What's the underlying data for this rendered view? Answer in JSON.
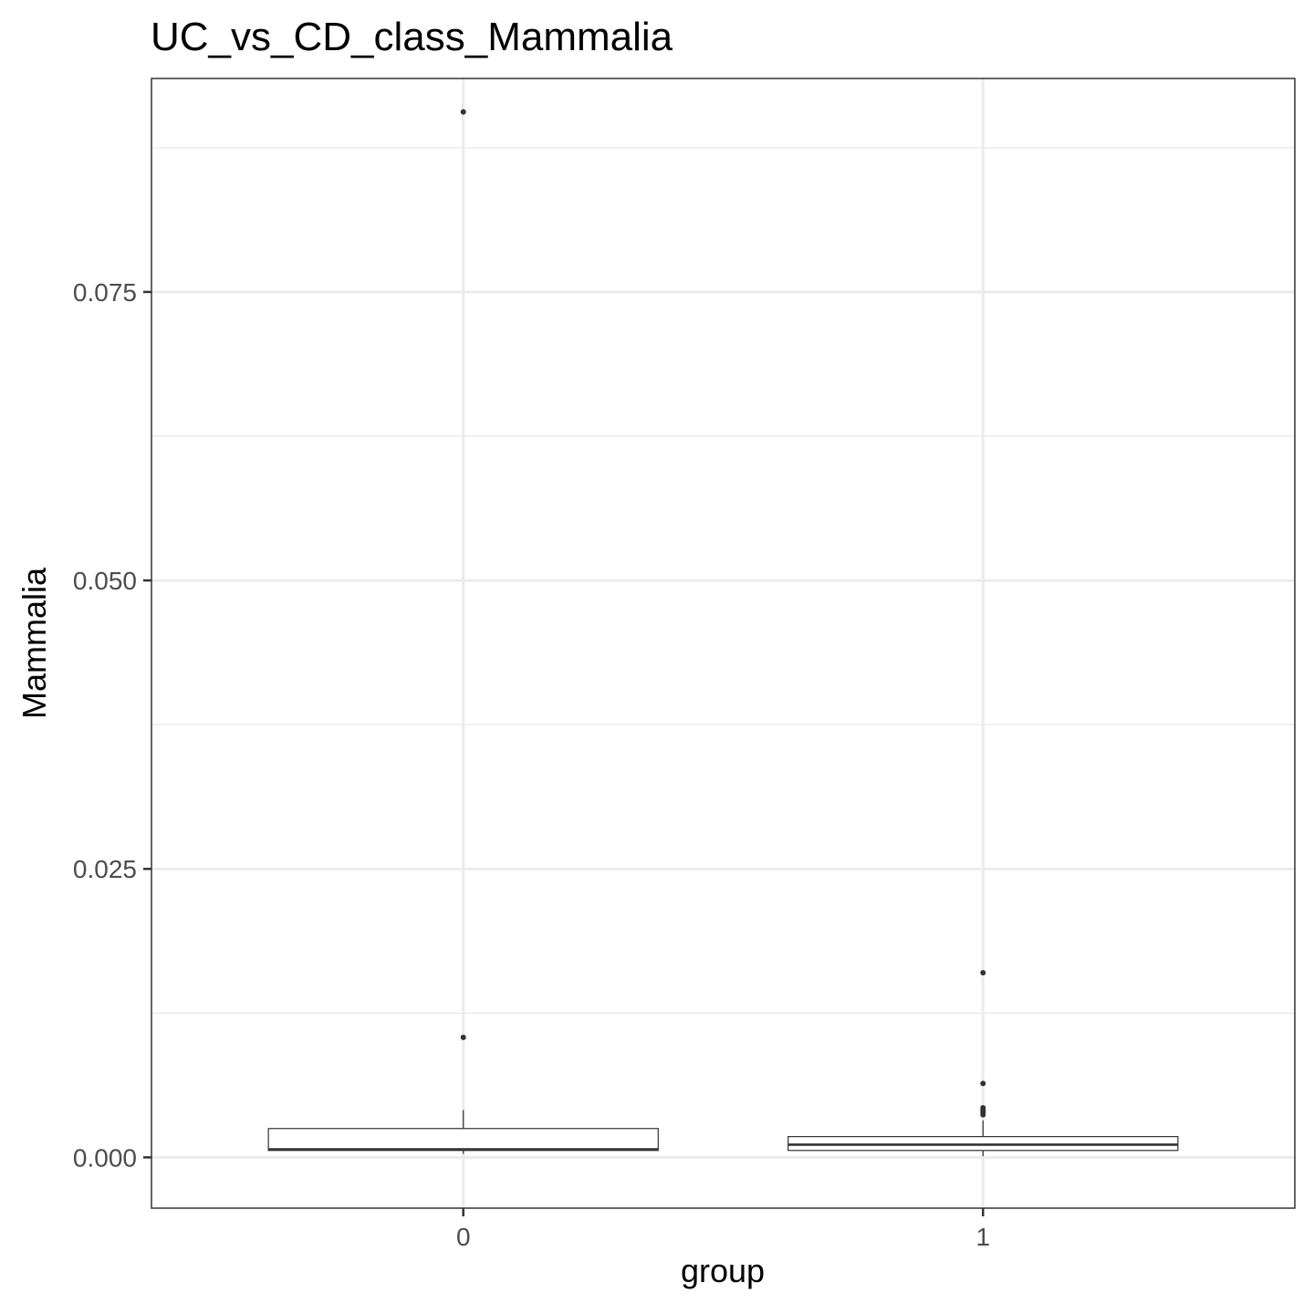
{
  "chart_data": {
    "type": "boxplot",
    "title": "UC_vs_CD_class_Mammalia",
    "xlabel": "group",
    "ylabel": "Mammalia",
    "categories": [
      "0",
      "1"
    ],
    "ylim": [
      -0.0044,
      0.0935
    ],
    "y_ticks": [
      0.0,
      0.025,
      0.05,
      0.075
    ],
    "y_tick_labels": [
      "0.000",
      "0.025",
      "0.050",
      "0.075"
    ],
    "grid": true,
    "legend": "none",
    "boxes": [
      {
        "group": "0",
        "whisker_low": 0.0003,
        "q1": 0.0006,
        "median": 0.0007,
        "q3": 0.0025,
        "whisker_high": 0.0041,
        "outliers": [
          0.0104,
          0.0906
        ]
      },
      {
        "group": "1",
        "whisker_low": 0.0001,
        "q1": 0.0006,
        "median": 0.0011,
        "q3": 0.0018,
        "whisker_high": 0.0032,
        "outliers": [
          0.0037,
          0.0039,
          0.0041,
          0.0043,
          0.0064,
          0.016
        ]
      }
    ],
    "colors": {
      "panel_background": "#ffffff",
      "panel_border": "#333333",
      "grid": "#ebebeb",
      "box_line": "#333333",
      "box_fill": "#ffffff",
      "outlier": "#333333",
      "tick_label": "#4d4d4d",
      "title": "#000000"
    }
  }
}
